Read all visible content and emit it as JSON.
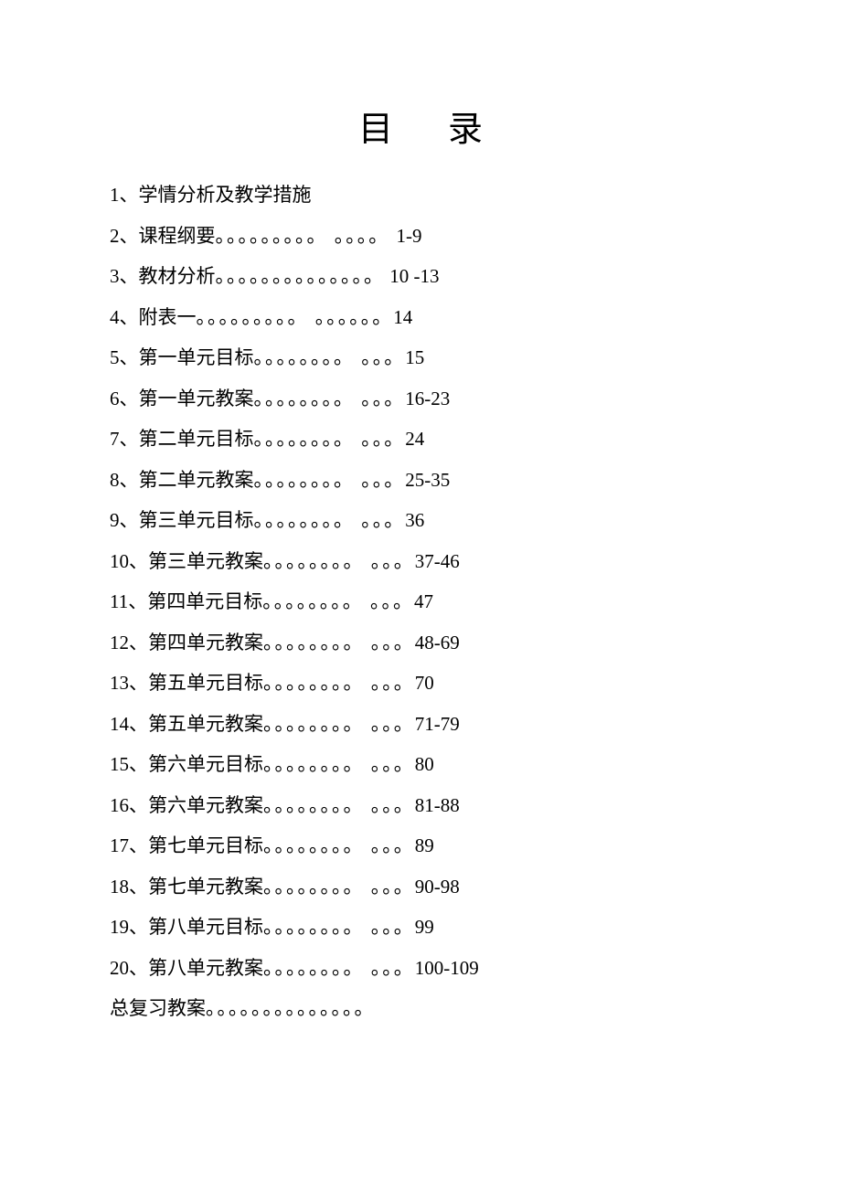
{
  "document": {
    "title": "目录",
    "background_color": "#ffffff",
    "text_color": "#000000",
    "title_fontsize": 38,
    "entry_fontsize": 21,
    "font_family": "SimSun",
    "entries": [
      {
        "num": "1、",
        "label": "学情分析及教学措施",
        "dots": "",
        "page": ""
      },
      {
        "num": "2、",
        "label": "课程纲要",
        "dots": "。。。。。。。。。 。。。。 ",
        "page": " 1-9"
      },
      {
        "num": "3、",
        "label": "教材分析",
        "dots": "。。。。。。。。。。。。。。",
        "page": " 10 -13"
      },
      {
        "num": "4、",
        "label": "附表一",
        "dots": "。。。。。。。。。 。。。。。。",
        "page": "14"
      },
      {
        "num": "5、",
        "label": "第一单元目标",
        "dots": "。。。。。。。。 。。。",
        "page": "15"
      },
      {
        "num": "6、",
        "label": "第一单元教案",
        "dots": "。。。。。。。。 。。。",
        "page": "16-23"
      },
      {
        "num": "7、",
        "label": "第二单元目标",
        "dots": "。。。。。。。。 。。。",
        "page": "24"
      },
      {
        "num": "8、",
        "label": "第二单元教案",
        "dots": "。。。。。。。。 。。。",
        "page": "25-35"
      },
      {
        "num": "9、",
        "label": "第三单元目标",
        "dots": "。。。。。。。。 。。。",
        "page": "36"
      },
      {
        "num": "10、",
        "label": "第三单元教案",
        "dots": "。。。。。。。。 。。。",
        "page": "37-46"
      },
      {
        "num": "11、",
        "label": "第四单元目标",
        "dots": "。。。。。。。。 。。。",
        "page": "47"
      },
      {
        "num": "12、",
        "label": "第四单元教案",
        "dots": "。。。。。。。。 。。。",
        "page": "48-69"
      },
      {
        "num": "13、",
        "label": "第五单元目标",
        "dots": "。。。。。。。。 。。。",
        "page": "70"
      },
      {
        "num": "14、",
        "label": "第五单元教案",
        "dots": "。。。。。。。。 。。。",
        "page": "71-79"
      },
      {
        "num": "15、",
        "label": "第六单元目标",
        "dots": "。。。。。。。。 。。。",
        "page": "80"
      },
      {
        "num": "16、",
        "label": "第六单元教案",
        "dots": "。。。。。。。。 。。。",
        "page": "81-88"
      },
      {
        "num": "17、",
        "label": "第七单元目标",
        "dots": "。。。。。。。。 。。。",
        "page": "89"
      },
      {
        "num": "18、",
        "label": "第七单元教案",
        "dots": "。。。。。。。。 。。。",
        "page": "90-98"
      },
      {
        "num": "19、",
        "label": "第八单元目标",
        "dots": "。。。。。。。。 。。。",
        "page": "99"
      },
      {
        "num": "20、",
        "label": "第八单元教案",
        "dots": "。。。。。。。。 。。。",
        "page": "100-109"
      },
      {
        "num": "",
        "label": "总复习教案",
        "dots": "。。。。。。。。。。。。。。",
        "page": ""
      }
    ]
  }
}
